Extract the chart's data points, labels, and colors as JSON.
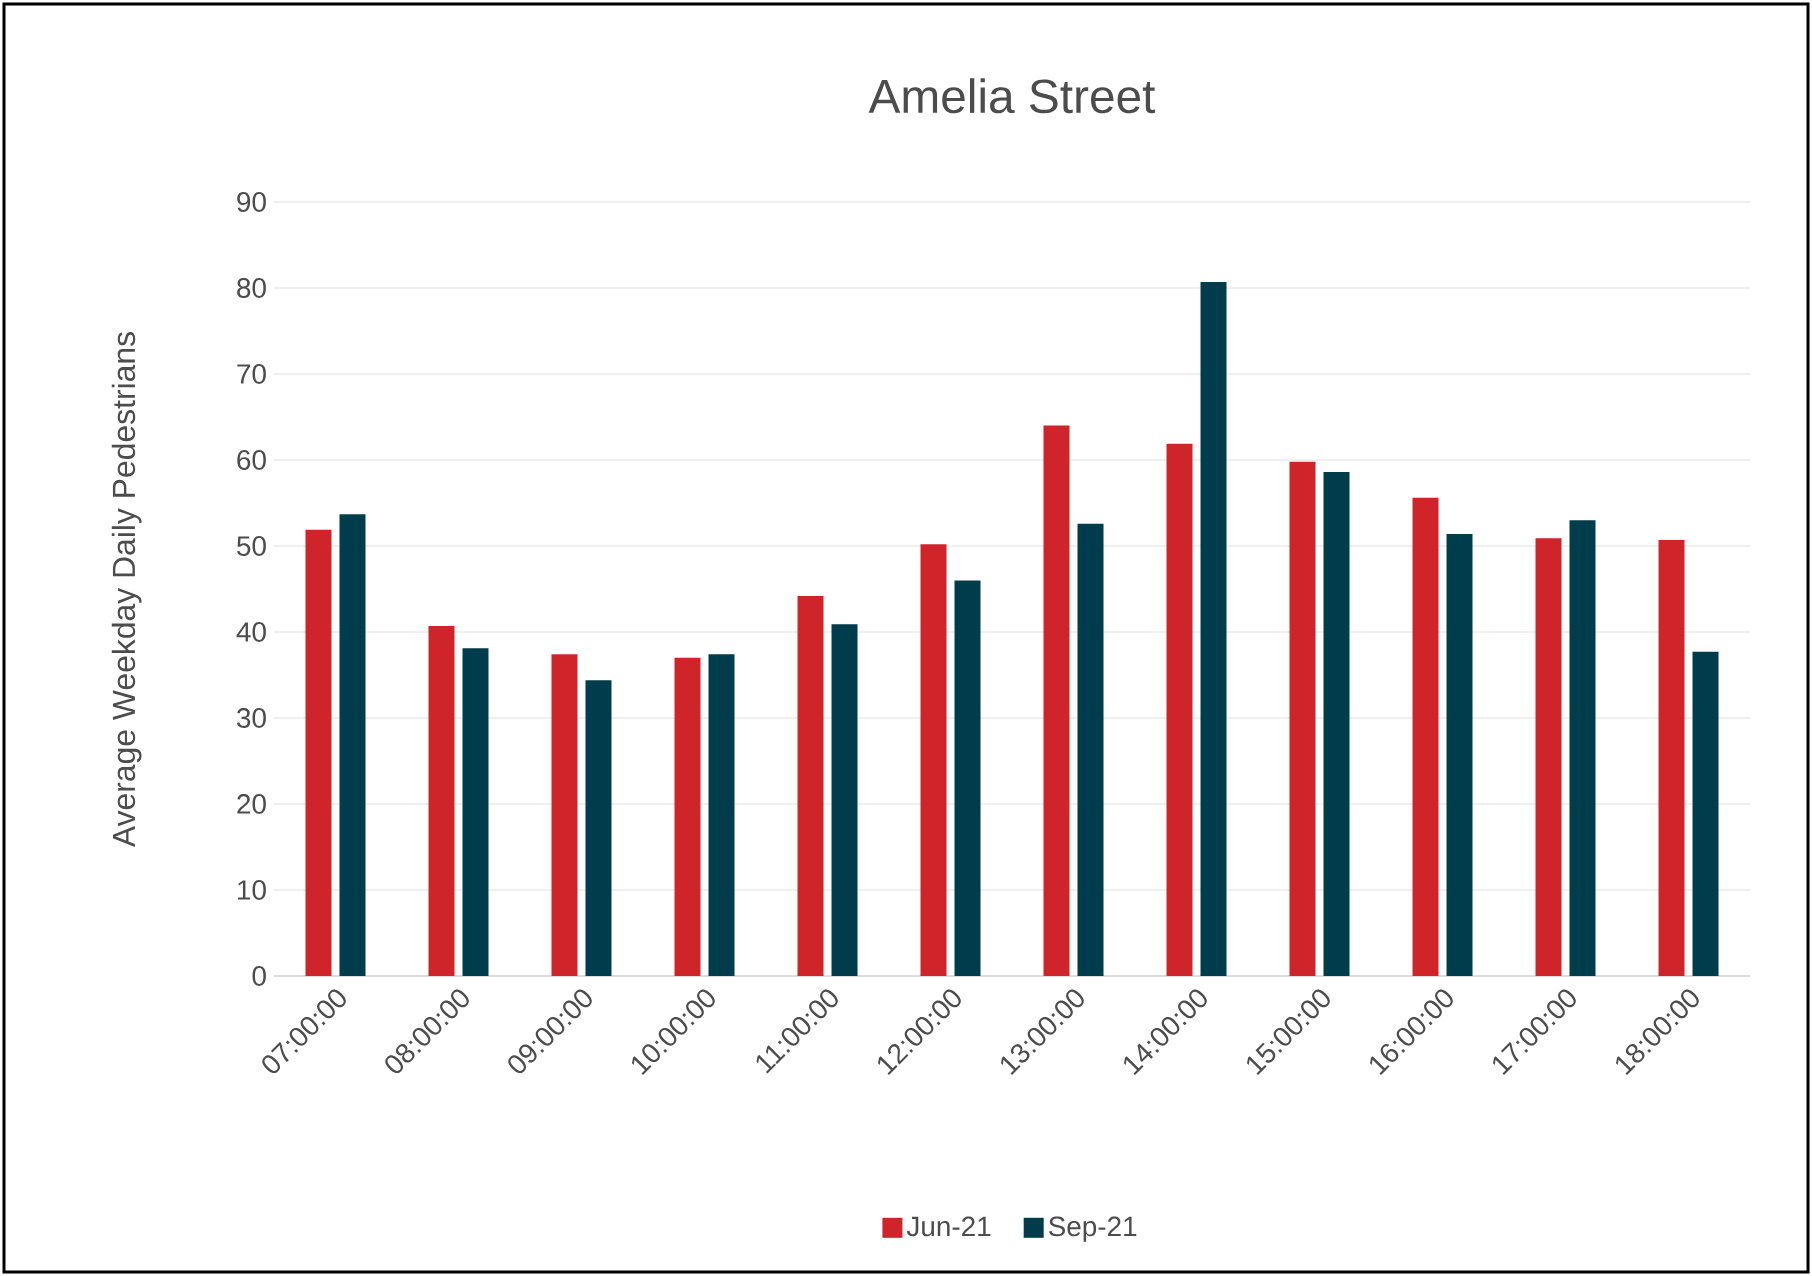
{
  "chart_data": {
    "type": "bar",
    "title": "Amelia Street",
    "ylabel": "Average Weekday Daily Pedestrians",
    "categories": [
      "07:00:00",
      "08:00:00",
      "09:00:00",
      "10:00:00",
      "11:00:00",
      "12:00:00",
      "13:00:00",
      "14:00:00",
      "15:00:00",
      "16:00:00",
      "17:00:00",
      "18:00:00"
    ],
    "series": [
      {
        "name": "Jun-21",
        "color": "#d0242b",
        "values": [
          51.9,
          40.7,
          37.4,
          37.0,
          44.2,
          50.2,
          64.0,
          61.9,
          59.8,
          55.6,
          50.9,
          50.7
        ]
      },
      {
        "name": "Sep-21",
        "color": "#003d4c",
        "values": [
          53.7,
          38.1,
          34.4,
          37.4,
          40.9,
          46.0,
          52.6,
          80.7,
          58.6,
          51.4,
          53.0,
          37.7
        ]
      }
    ],
    "ylim": [
      0,
      90
    ],
    "yticks": [
      0,
      10,
      20,
      30,
      40,
      50,
      60,
      70,
      80,
      90
    ],
    "grid": "y",
    "legend": "bottom"
  }
}
